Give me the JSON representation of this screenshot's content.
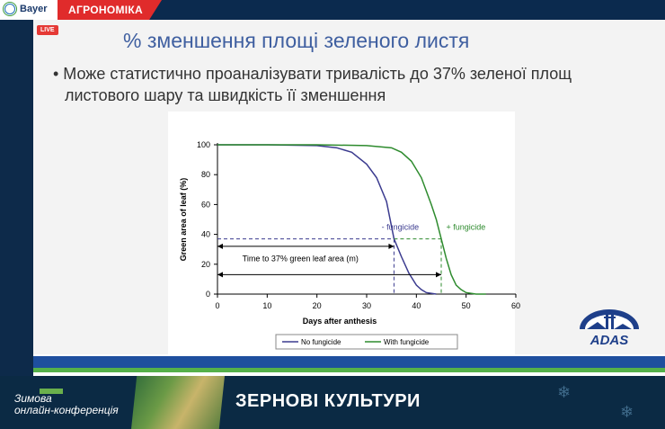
{
  "header": {
    "brand": "Bayer",
    "section": "АГРОНОМІКА"
  },
  "live": "LIVE",
  "slide": {
    "title": "% зменшення площі зеленого листя",
    "bullet_line1": "• Може статистично проаналізувати тривалість до 37% зеленої площ",
    "bullet_line2": "листового шару та швидкість її зменшення"
  },
  "logo": "ADAS",
  "chart_data": {
    "type": "line",
    "xlabel": "Days after anthesis",
    "ylabel": "Green area of leaf (%)",
    "xlim": [
      0,
      60
    ],
    "ylim": [
      0,
      100
    ],
    "xticks": [
      0,
      10,
      20,
      30,
      40,
      50,
      60
    ],
    "yticks": [
      0,
      20,
      40,
      60,
      80,
      100
    ],
    "grid": false,
    "legend_placement": "bottom",
    "threshold_y": 37,
    "series": [
      {
        "name": "No fungicide",
        "color": "#3b3b8f",
        "x": [
          0,
          10,
          20,
          24,
          27,
          30,
          32,
          34,
          35.5,
          37,
          38.5,
          40,
          41,
          42,
          44
        ],
        "y": [
          100,
          100,
          99.5,
          98,
          95,
          87,
          78,
          62,
          37,
          25,
          14,
          6,
          3,
          1,
          0
        ]
      },
      {
        "name": "With fungicide",
        "color": "#2e8b2e",
        "x": [
          0,
          10,
          20,
          30,
          35,
          37,
          39,
          41,
          43,
          44,
          45,
          46,
          47,
          48,
          49,
          50,
          52,
          54
        ],
        "y": [
          100,
          100,
          100,
          99.5,
          98,
          95,
          89,
          78,
          60,
          50,
          37,
          24,
          13,
          6,
          3,
          1,
          0,
          0
        ]
      }
    ],
    "annotations": [
      {
        "text": "- fungicide",
        "x": 33,
        "y": 43
      },
      {
        "text": "+ fungicide",
        "x": 46,
        "y": 43
      },
      {
        "text": "Time to 37% green leaf area (m)",
        "x": 5,
        "y": 22
      }
    ]
  },
  "footer": {
    "conference_line1": "Зимова",
    "conference_line2": "онлайн-конференція",
    "title": "ЗЕРНОВІ КУЛЬТУРИ"
  }
}
